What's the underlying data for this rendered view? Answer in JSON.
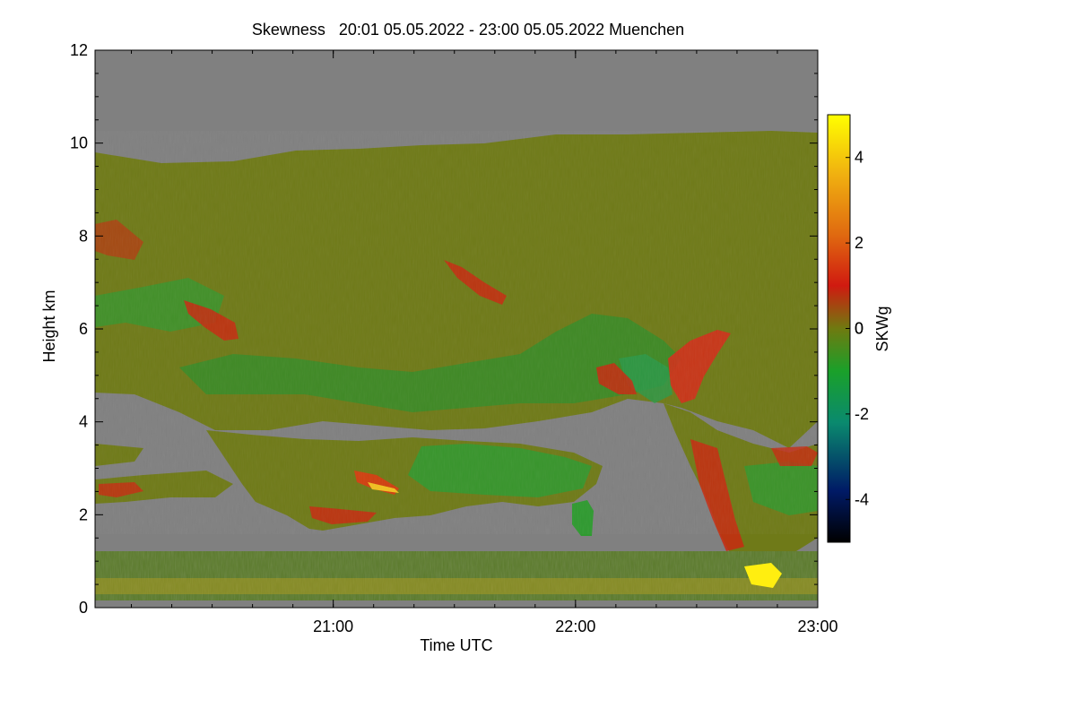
{
  "chart_data": {
    "type": "heatmap",
    "title": "Skewness   20:01 05.05.2022 - 23:00 05.05.2022 Muenchen",
    "xlabel": "Time UTC",
    "ylabel": "Height km",
    "xlim": [
      "20:01",
      "23:00"
    ],
    "x_ticks": [
      "21:00",
      "22:00",
      "23:00"
    ],
    "ylim": [
      0,
      12
    ],
    "y_ticks": [
      "0",
      "2",
      "4",
      "6",
      "8",
      "10",
      "12"
    ],
    "colorbar": {
      "label": "SKWg",
      "range": [
        -5,
        5
      ],
      "ticks": [
        "-4",
        "-2",
        "0",
        "2",
        "4"
      ],
      "colors": [
        "#000000",
        "#001a66",
        "#0a8a6e",
        "#1aa02a",
        "#6f7a10",
        "#d01a10",
        "#e06a10",
        "#f0b010",
        "#ffff00"
      ]
    },
    "no_data_color": "#808080",
    "features": [
      {
        "description": "upper cloud layer",
        "height_km_range": [
          4.5,
          10.2
        ],
        "dominant_skewness": "near 0 with mixed positive/negative streaks"
      },
      {
        "description": "lower cloud layer",
        "height_km_range": [
          1.6,
          3.6
        ],
        "dominant_skewness": "mixed, strong positive near 21:05 at 2.5 km"
      },
      {
        "description": "boundary layer noise",
        "height_km_range": [
          0.1,
          1.1
        ],
        "dominant_skewness": "noisy, high positive near 22:45"
      }
    ]
  }
}
